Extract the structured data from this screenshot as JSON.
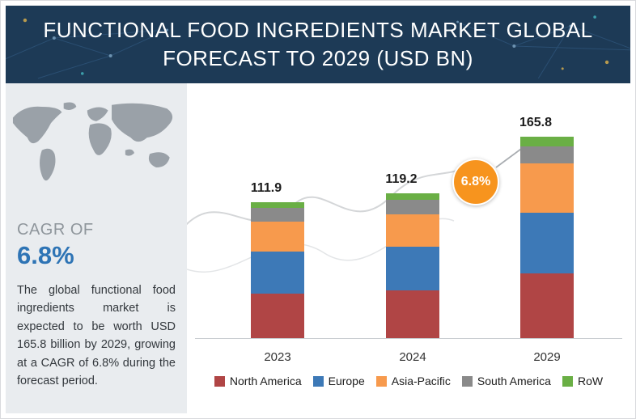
{
  "header": {
    "title_line1": "FUNCTIONAL FOOD INGREDIENTS MARKET GLOBAL",
    "title_line2": "FORECAST TO 2029 (USD BN)"
  },
  "sidebar": {
    "cagr_label": "CAGR OF",
    "cagr_value": "6.8%",
    "description": "The global functional food ingredients market is expected to be worth USD 165.8 billion by 2029, growing at a CAGR of 6.8% during the forecast period."
  },
  "chart_data": {
    "type": "bar",
    "stacked": true,
    "title": "Functional Food Ingredients Market Global Forecast to 2029 (USD BN)",
    "categories": [
      "2023",
      "2024",
      "2029"
    ],
    "totals": [
      111.9,
      119.2,
      165.8
    ],
    "series": [
      {
        "name": "North America",
        "color": "#b04545",
        "values": [
          36.5,
          39.0,
          53.0
        ]
      },
      {
        "name": "Europe",
        "color": "#3d79b7",
        "values": [
          34.5,
          36.0,
          50.0
        ]
      },
      {
        "name": "Asia-Pacific",
        "color": "#f79a4d",
        "values": [
          25.0,
          27.0,
          41.0
        ]
      },
      {
        "name": "South America",
        "color": "#8a8a8a",
        "values": [
          11.0,
          12.0,
          14.0
        ]
      },
      {
        "name": "RoW",
        "color": "#6aaf45",
        "values": [
          4.9,
          5.2,
          7.8
        ]
      }
    ],
    "badge": "6.8%",
    "badge_color": "#f7941e",
    "legend_position": "bottom",
    "grid": false
  }
}
